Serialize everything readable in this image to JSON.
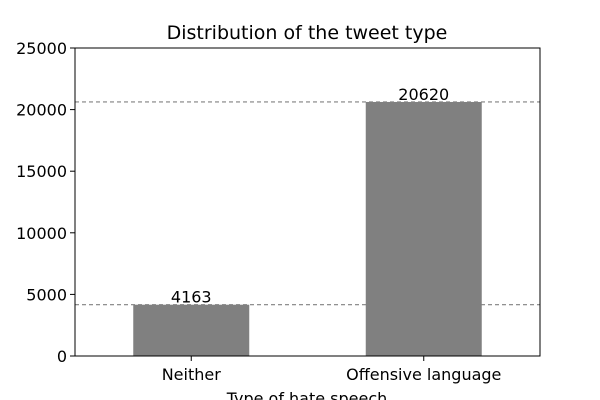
{
  "chart_data": {
    "type": "bar",
    "title": "Distribution of the tweet type",
    "xlabel": "Type of hate speech",
    "ylabel": "",
    "categories": [
      "Neither",
      "Offensive language"
    ],
    "values": [
      4163,
      20620
    ],
    "data_labels": [
      "4163",
      "20620"
    ],
    "ylim": [
      0,
      25000
    ],
    "yticks": [
      0,
      5000,
      10000,
      15000,
      20000,
      25000
    ],
    "ytick_labels": [
      "0",
      "5000",
      "10000",
      "15000",
      "20000",
      "25000"
    ],
    "bar_color": "#808080",
    "reference_lines": [
      4163,
      20620
    ],
    "reference_line_color": "#808080",
    "grid": false
  }
}
